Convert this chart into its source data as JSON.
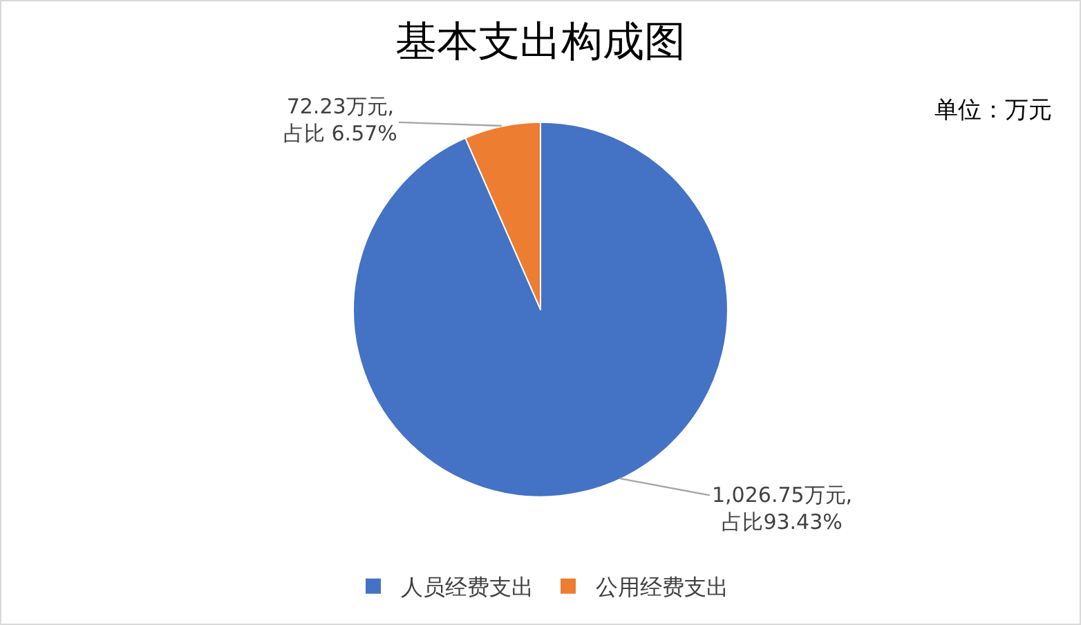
{
  "chart_data": {
    "type": "pie",
    "title": "基本支出构成图",
    "categories": [
      "人员经费支出",
      "公用经费支出"
    ],
    "values": [
      1026.75,
      72.23
    ],
    "colors": [
      "#4472c4",
      "#ed7d31"
    ],
    "value_labels": [
      "1,026.75万元,\n占比93.43%",
      "72.23万元,\n占比 6.57%"
    ],
    "annotations": [
      "单位：万元"
    ],
    "legend": "bottom"
  }
}
